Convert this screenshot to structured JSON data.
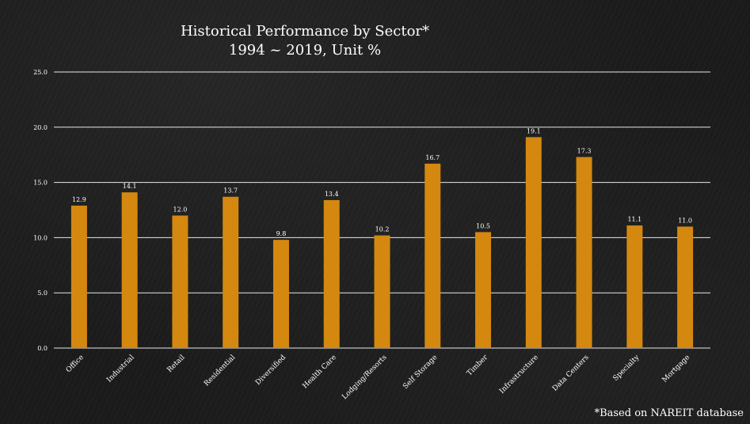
{
  "chart_data": {
    "type": "bar",
    "title_line1": "Historical Performance by Sector*",
    "title_line2": "1994 ~ 2019, Unit %",
    "categories": [
      "Office",
      "Industrial",
      "Retail",
      "Residential",
      "Diversified",
      "Health Care",
      "Lodging/Resorts",
      "Self Storage",
      "Timber",
      "Infrastructure",
      "Data Centers",
      "Specialty",
      "Mortgage"
    ],
    "values": [
      12.9,
      14.1,
      12.0,
      13.7,
      9.8,
      13.4,
      10.2,
      16.7,
      10.5,
      19.1,
      17.3,
      11.1,
      11.0
    ],
    "value_labels": [
      "12.9",
      "14.1",
      "12.0",
      "13.7",
      "9.8",
      "13.4",
      "10.2",
      "16.7",
      "10.5",
      "19.1",
      "17.3",
      "11.1",
      "11.0"
    ],
    "yticks": [
      "0.0",
      "5.0",
      "10.0",
      "15.0",
      "20.0",
      "25.0"
    ],
    "ylim": [
      0,
      25
    ],
    "grid": true,
    "bar_color": "#d4880f",
    "footnote": "*Based on NAREIT database"
  }
}
